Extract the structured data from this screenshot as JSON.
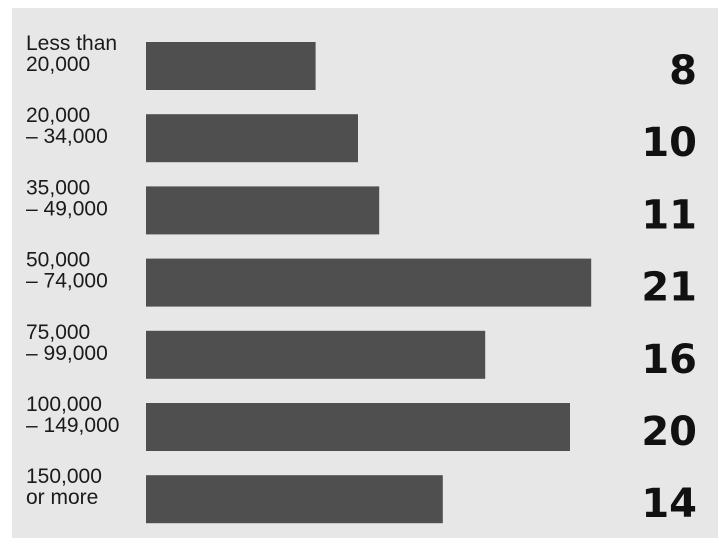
{
  "chart_data": {
    "type": "bar",
    "orientation": "horizontal",
    "categories": [
      [
        "Less than",
        "20,000"
      ],
      [
        "20,000",
        "– 34,000"
      ],
      [
        "35,000",
        "– 49,000"
      ],
      [
        "50,000",
        "– 74,000"
      ],
      [
        "75,000",
        "– 99,000"
      ],
      [
        "100,000",
        "– 149,000"
      ],
      [
        "150,000",
        "or more"
      ]
    ],
    "values": [
      8,
      10,
      11,
      21,
      16,
      20,
      14
    ],
    "value_labels": [
      "8",
      "10",
      "11",
      "21",
      "16",
      "20",
      "14"
    ],
    "title": "",
    "xlabel": "",
    "ylabel": "",
    "xlim": [
      0,
      21
    ],
    "grid": false,
    "legend": "none",
    "colors": {
      "panel": "#e6e7e6",
      "bar": "#4f4f4f",
      "text": "#111111"
    }
  }
}
